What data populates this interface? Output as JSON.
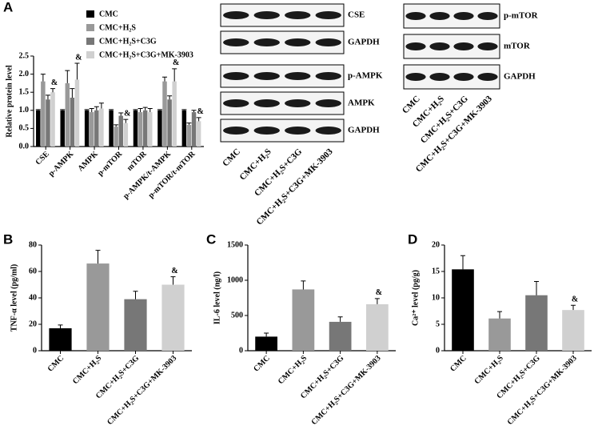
{
  "chart_data": [
    {
      "type": "grouped_bar",
      "panel_label": "A",
      "ylabel": "Relative protein level",
      "categories": [
        "CSE",
        "p-AMPK",
        "AMPK",
        "p-mTOR",
        "mTOR",
        "p-AMPK/t-AMPK",
        "p-mTOR/t-mTOR"
      ],
      "series": [
        {
          "name": "CMC",
          "color": "#000000",
          "values": [
            1.0,
            1.0,
            1.0,
            1.0,
            1.0,
            1.0,
            1.0
          ],
          "errors": [
            0.02,
            0.02,
            0.02,
            0.02,
            0.02,
            0.02,
            0.02
          ],
          "marks": [
            null,
            null,
            null,
            null,
            null,
            null,
            null
          ]
        },
        {
          "name": "CMC+H₂S",
          "color": "#999999",
          "values": [
            1.8,
            1.75,
            0.95,
            0.55,
            0.95,
            1.8,
            0.6
          ],
          "errors": [
            0.2,
            0.35,
            0.1,
            0.05,
            0.1,
            0.12,
            0.05
          ],
          "marks": [
            null,
            null,
            null,
            null,
            null,
            null,
            null
          ]
        },
        {
          "name": "CMC+H₂S+C3G",
          "color": "#777777",
          "values": [
            1.3,
            1.35,
            1.0,
            0.85,
            1.0,
            1.3,
            0.95
          ],
          "errors": [
            0.12,
            0.25,
            0.1,
            0.08,
            0.08,
            0.1,
            0.05
          ],
          "marks": [
            null,
            null,
            null,
            null,
            null,
            null,
            null
          ]
        },
        {
          "name": "CMC+H₂S+C3G+MK-3903",
          "color": "#d0d0d0",
          "values": [
            1.5,
            1.85,
            1.05,
            0.65,
            0.95,
            1.8,
            0.7
          ],
          "errors": [
            0.1,
            0.45,
            0.15,
            0.1,
            0.1,
            0.35,
            0.1
          ],
          "marks": [
            "&",
            "&",
            null,
            "&",
            null,
            "&",
            "&"
          ]
        }
      ],
      "ylim": [
        0,
        2.5
      ],
      "yticks": [
        {
          "value": 0,
          "label": "0.0"
        },
        0.5,
        {
          "value": 1,
          "label": "1.0"
        },
        1.5,
        {
          "value": 2,
          "label": "2.0"
        },
        2.5
      ]
    },
    {
      "type": "bar",
      "panel_label": "B",
      "ylabel": "TNF-α level (pg/ml)",
      "categories": [
        "CMC",
        "CMC+H₂S",
        "CMC+H₂S+C3G",
        "CMC+H₂S+C3G+MK-3903"
      ],
      "values": [
        17,
        66,
        39,
        50
      ],
      "errors": [
        2.5,
        10,
        6,
        6
      ],
      "marks": [
        null,
        null,
        null,
        "&"
      ],
      "colors": [
        "#000000",
        "#999999",
        "#777777",
        "#d0d0d0"
      ],
      "ylim": [
        0,
        80
      ],
      "yticks": [
        0,
        20,
        40,
        60,
        80
      ]
    },
    {
      "type": "bar",
      "panel_label": "C",
      "ylabel": "IL-6 level (ng/l)",
      "categories": [
        "CMC",
        "CMC+H₂S",
        "CMC+H₂S+C3G",
        "CMC+H₂S+C3G+MK-3903"
      ],
      "values": [
        200,
        870,
        410,
        660
      ],
      "errors": [
        50,
        120,
        70,
        80
      ],
      "marks": [
        null,
        null,
        null,
        "&"
      ],
      "colors": [
        "#000000",
        "#999999",
        "#777777",
        "#d0d0d0"
      ],
      "ylim": [
        0,
        1500
      ],
      "yticks": [
        0,
        500,
        1000,
        1500
      ]
    },
    {
      "type": "bar",
      "panel_label": "D",
      "ylabel": "Ca²⁺ level (pg/g)",
      "categories": [
        "CMC",
        "CMC+H₂S",
        "CMC+H₂S+C3G",
        "CMC+H₂S+C3G+MK-3903"
      ],
      "values": [
        15.4,
        6.1,
        10.5,
        7.7
      ],
      "errors": [
        2.6,
        1.3,
        2.6,
        0.9
      ],
      "marks": [
        null,
        null,
        null,
        "&"
      ],
      "colors": [
        "#000000",
        "#999999",
        "#777777",
        "#d0d0d0"
      ],
      "ylim": [
        0,
        20
      ],
      "yticks": [
        0,
        5,
        10,
        15,
        20
      ]
    }
  ],
  "blots": [
    {
      "groups": [
        [
          "CSE",
          "GAPDH"
        ],
        [
          "p-AMPK",
          "AMPK",
          "GAPDH"
        ]
      ],
      "lanes": [
        "CMC",
        "CMC+H₂S",
        "CMC+H₂S+C3G",
        "CMC+H₂S+C3G+MK-3903"
      ]
    },
    {
      "groups": [
        [
          "p-mTOR",
          "mTOR",
          "GAPDH"
        ]
      ],
      "lanes": [
        "CMC",
        "CMC+H₂S",
        "CMC+H₂S+C3G",
        "CMC+H₂S+C3G+MK-3903"
      ]
    }
  ]
}
